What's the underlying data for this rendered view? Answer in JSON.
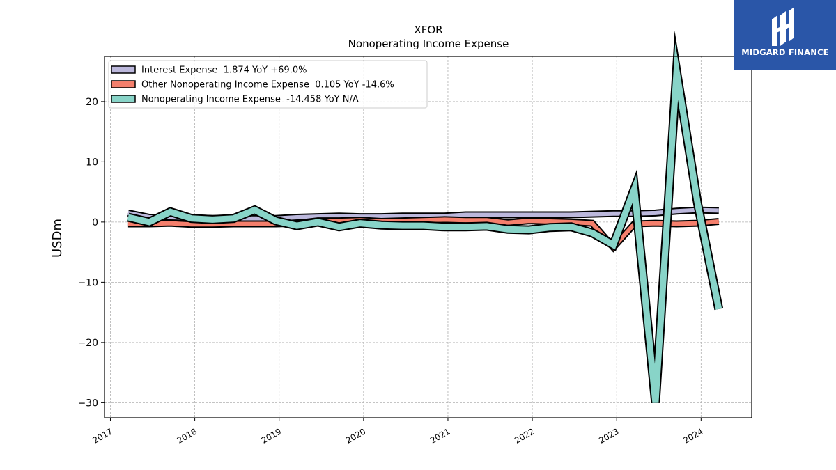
{
  "brand": {
    "name": "MIDGARD FINANCE",
    "bg_color": "#2a56a8"
  },
  "chart_data": {
    "type": "line",
    "title": "XFOR",
    "subtitle": "Nonoperating Income Expense",
    "xlabel": "",
    "ylabel": "USDm",
    "ylim": [
      -32.5,
      27.5
    ],
    "yticks": [
      -30,
      -20,
      -10,
      0,
      10,
      20
    ],
    "ytick_labels": [
      "−30",
      "−20",
      "−10",
      "0",
      "10",
      "20"
    ],
    "xlim": [
      2016.93,
      2024.6
    ],
    "xticks": [
      2017,
      2018,
      2019,
      2020,
      2021,
      2022,
      2023,
      2024
    ],
    "xtick_labels": [
      "2017",
      "2018",
      "2019",
      "2020",
      "2021",
      "2022",
      "2023",
      "2024"
    ],
    "grid": true,
    "legend_position": "top-left",
    "x": [
      2017.21,
      2017.46,
      2017.71,
      2017.96,
      2018.21,
      2018.46,
      2018.71,
      2018.96,
      2019.21,
      2019.46,
      2019.71,
      2019.96,
      2020.21,
      2020.46,
      2020.71,
      2020.96,
      2021.21,
      2021.46,
      2021.71,
      2021.96,
      2022.21,
      2022.46,
      2022.71,
      2022.96,
      2023.21,
      2023.46,
      2023.71,
      2023.96,
      2024.21
    ],
    "series": [
      {
        "name": "Interest Expense",
        "legend_label": "Interest Expense  1.874 YoY +69.0%",
        "color": "#bcb8dc",
        "values": [
          1.5,
          0.8,
          0.8,
          0.7,
          0.6,
          0.6,
          0.6,
          0.6,
          0.8,
          0.9,
          1.0,
          0.9,
          0.9,
          1.0,
          1.0,
          1.0,
          1.2,
          1.2,
          1.2,
          1.2,
          1.2,
          1.2,
          1.3,
          1.4,
          1.4,
          1.5,
          1.8,
          2.0,
          1.9
        ]
      },
      {
        "name": "Other Nonoperating Income Expense",
        "legend_label": "Other Nonoperating Income Expense  0.105 YoY -14.6%",
        "color": "#f47f6c",
        "values": [
          -0.3,
          -0.3,
          -0.2,
          -0.4,
          -0.4,
          -0.3,
          -0.3,
          -0.3,
          -0.2,
          0.2,
          0.2,
          0.3,
          0.1,
          0.2,
          0.3,
          0.4,
          0.3,
          0.3,
          -0.1,
          0.2,
          0.1,
          0.0,
          -0.2,
          -4.2,
          -0.3,
          -0.2,
          -0.3,
          -0.2,
          0.1
        ]
      },
      {
        "name": "Nonoperating Income Expense",
        "legend_label": "Nonoperating Income Expense  -14.458 YoY N/A",
        "color": "#88d4c8",
        "values": [
          0.8,
          0.0,
          1.7,
          0.6,
          0.4,
          0.6,
          2.0,
          0.2,
          -0.6,
          0.0,
          -0.8,
          -0.2,
          -0.5,
          -0.6,
          -0.6,
          -0.8,
          -0.8,
          -0.7,
          -1.2,
          -1.3,
          -0.9,
          -0.8,
          -1.8,
          -3.8,
          5.5,
          -30.0,
          25.0,
          3.0,
          -14.458
        ]
      }
    ]
  }
}
